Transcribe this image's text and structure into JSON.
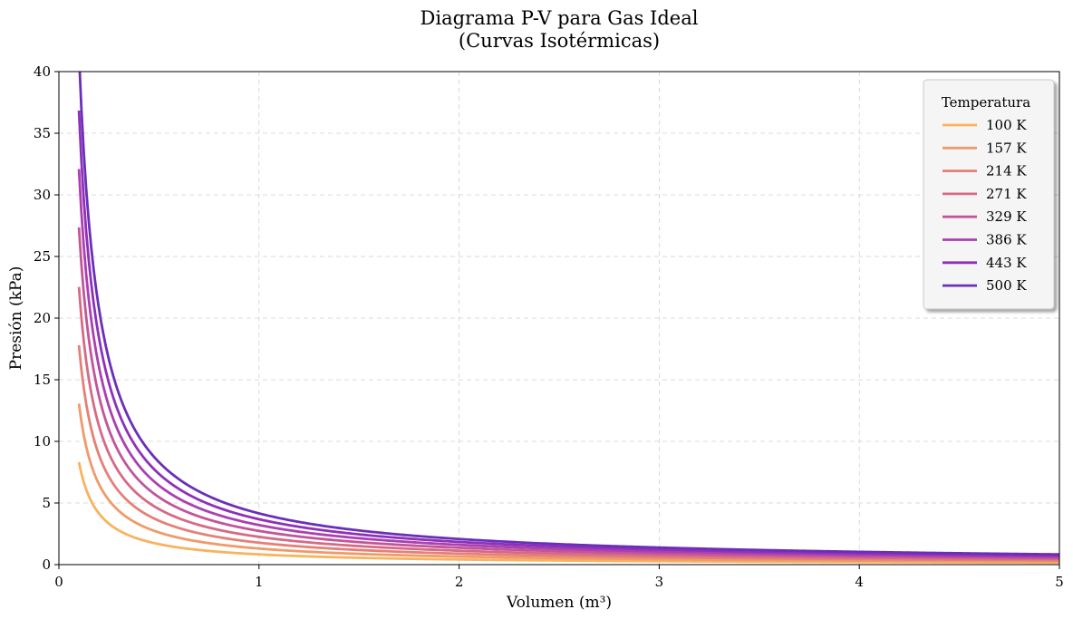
{
  "chart_data": {
    "type": "line",
    "title_line1": "Diagrama P-V para Gas Ideal",
    "title_line2": "(Curvas Isotérmicas)",
    "xlabel": "Volumen (m³)",
    "ylabel": "Presión (kPa)",
    "xlim": [
      0,
      5
    ],
    "ylim": [
      0,
      40
    ],
    "x_ticks": [
      "0",
      "1",
      "2",
      "3",
      "4",
      "5"
    ],
    "y_ticks": [
      "0",
      "5",
      "10",
      "15",
      "20",
      "25",
      "30",
      "35",
      "40"
    ],
    "grid": true,
    "legend": {
      "title": "Temperatura",
      "placement": "top-right"
    },
    "x_range": [
      0.1,
      5
    ],
    "series": [
      {
        "name": "100 K",
        "temperature": 100,
        "color": "#f8b35e",
        "p_at_v_0_1": 8.31
      },
      {
        "name": "157 K",
        "temperature": 157,
        "color": "#f09a6a",
        "p_at_v_0_1": 13.06
      },
      {
        "name": "214 K",
        "temperature": 214,
        "color": "#e48078",
        "p_at_v_0_1": 17.8
      },
      {
        "name": "271 K",
        "temperature": 271,
        "color": "#d66a86",
        "p_at_v_0_1": 22.53
      },
      {
        "name": "329 K",
        "temperature": 329,
        "color": "#c25599",
        "p_at_v_0_1": 27.36
      },
      {
        "name": "386 K",
        "temperature": 386,
        "color": "#ab40b0",
        "p_at_v_0_1": 32.1
      },
      {
        "name": "443 K",
        "temperature": 443,
        "color": "#8e31ba",
        "p_at_v_0_1": 36.83
      },
      {
        "name": "500 K",
        "temperature": 500,
        "color": "#6a2fb8",
        "p_at_v_0_1": 41.57
      }
    ]
  }
}
